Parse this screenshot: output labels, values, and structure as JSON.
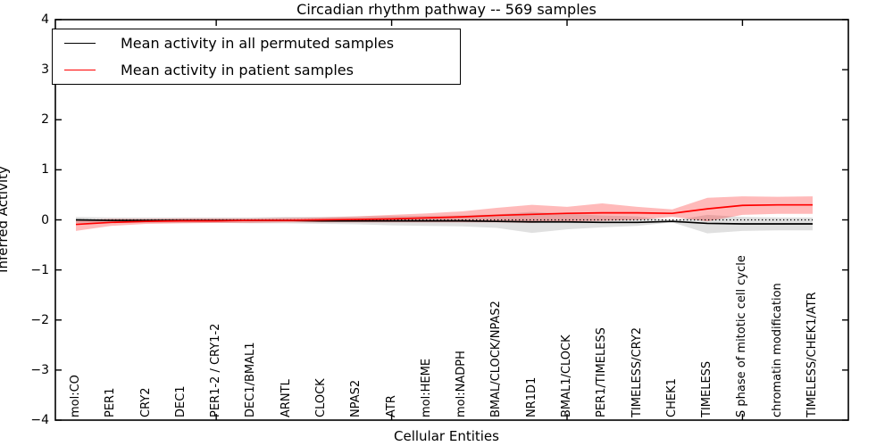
{
  "figure": {
    "title": "Circadian rhythm pathway -- 569 samples",
    "xlabel": "Cellular Entities",
    "ylabel": "Inferred Activity"
  },
  "chart_data": {
    "type": "line",
    "title": "Circadian rhythm pathway -- 569 samples",
    "xlabel": "Cellular Entities",
    "ylabel": "Inferred Activity",
    "ylim": [
      -4,
      4
    ],
    "ytick_labels": [
      "4",
      "3",
      "2",
      "1",
      "0",
      "−1",
      "−2",
      "−3",
      "−4"
    ],
    "ytick_values": [
      4,
      3,
      2,
      1,
      0,
      -1,
      -2,
      -3,
      -4
    ],
    "categories": [
      "mol:CO",
      "PER1",
      "CRY2",
      "DEC1",
      "PER1-2 / CRY1-2",
      "DEC1/BMAL1",
      "ARNTL",
      "CLOCK",
      "NPAS2",
      "ATR",
      "mol:HEME",
      "mol:NADPH",
      "BMAL/CLOCK/NPAS2",
      "NR1D1",
      "BMAL1/CLOCK",
      "PER1/TIMELESS",
      "TIMELESS/CRY2",
      "CHEK1",
      "TIMELESS",
      "S phase of mitotic cell cycle",
      "chromatin modification",
      "TIMELESS/CHEK1/ATR"
    ],
    "series": [
      {
        "name": "Mean activity in all permuted samples",
        "color": "#000000",
        "band_color": "rgba(0,0,0,0.12)",
        "mean": [
          0.0,
          -0.01,
          -0.01,
          -0.01,
          -0.01,
          -0.01,
          -0.01,
          -0.02,
          -0.02,
          -0.02,
          -0.02,
          -0.02,
          -0.03,
          -0.04,
          -0.04,
          -0.05,
          -0.05,
          -0.03,
          -0.07,
          -0.08,
          -0.08,
          -0.08
        ],
        "upper": [
          0.06,
          0.05,
          0.05,
          0.05,
          0.05,
          0.05,
          0.06,
          0.06,
          0.07,
          0.08,
          0.08,
          0.09,
          0.11,
          0.16,
          0.12,
          0.09,
          0.07,
          -0.01,
          0.1,
          0.06,
          0.05,
          0.05
        ],
        "lower": [
          -0.06,
          -0.06,
          -0.06,
          -0.06,
          -0.06,
          -0.07,
          -0.07,
          -0.08,
          -0.09,
          -0.11,
          -0.12,
          -0.13,
          -0.16,
          -0.26,
          -0.19,
          -0.15,
          -0.12,
          -0.05,
          -0.27,
          -0.22,
          -0.21,
          -0.21
        ]
      },
      {
        "name": "Mean activity in patient samples",
        "color": "#ff0000",
        "band_color": "rgba(255,0,0,0.27)",
        "mean": [
          -0.09,
          -0.05,
          -0.03,
          -0.02,
          -0.02,
          -0.01,
          -0.01,
          0.0,
          0.01,
          0.02,
          0.04,
          0.06,
          0.09,
          0.11,
          0.13,
          0.14,
          0.14,
          0.13,
          0.22,
          0.29,
          0.3,
          0.3
        ],
        "upper": [
          0.0,
          0.02,
          0.02,
          0.03,
          0.03,
          0.03,
          0.04,
          0.05,
          0.07,
          0.1,
          0.13,
          0.17,
          0.24,
          0.3,
          0.26,
          0.33,
          0.26,
          0.21,
          0.44,
          0.47,
          0.46,
          0.47
        ],
        "lower": [
          -0.22,
          -0.12,
          -0.08,
          -0.07,
          -0.06,
          -0.06,
          -0.05,
          -0.05,
          -0.05,
          -0.05,
          -0.05,
          -0.05,
          -0.05,
          -0.06,
          -0.03,
          -0.02,
          0.0,
          0.06,
          -0.03,
          0.1,
          0.12,
          0.12
        ]
      }
    ],
    "zero_line": {
      "value": 0,
      "style": "dotted",
      "color": "#000000"
    },
    "legend": {
      "position": "upper left"
    },
    "layout": {
      "grid": false,
      "secondary_tick_indices": [
        4,
        9,
        14,
        19
      ],
      "bands": "mean ± spread shaded"
    }
  }
}
